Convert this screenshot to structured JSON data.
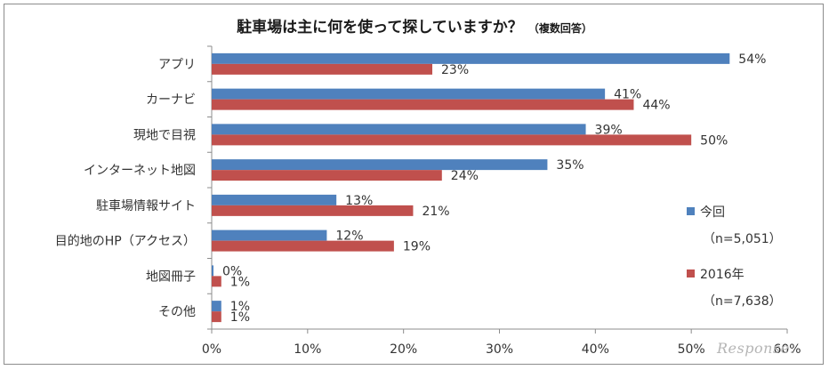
{
  "title": "駐車場は主に何を使って探していますか？",
  "title_note": "（複数回答）",
  "legend": [
    {
      "label": "今回",
      "n": "（n=5,051）",
      "color": "#4f81bd"
    },
    {
      "label": "2016年",
      "n": "（n=7,638）",
      "color": "#c0504d"
    }
  ],
  "watermark": "Response.",
  "chart_data": {
    "type": "bar",
    "orientation": "horizontal",
    "categories": [
      "アプリ",
      "カーナビ",
      "現地で目視",
      "インターネット地図",
      "駐車場情報サイト",
      "目的地のHP（アクセス）",
      "地図冊子",
      "その他"
    ],
    "series": [
      {
        "name": "今回",
        "values": [
          54,
          41,
          39,
          35,
          13,
          12,
          0,
          1
        ],
        "color": "#4f81bd"
      },
      {
        "name": "2016年",
        "values": [
          23,
          44,
          50,
          24,
          21,
          19,
          1,
          1
        ],
        "color": "#c0504d"
      }
    ],
    "xlim": [
      0,
      60
    ],
    "xticks": [
      "0%",
      "10%",
      "20%",
      "30%",
      "40%",
      "50%",
      "60%"
    ],
    "value_suffix": "%",
    "grid": false,
    "legend_position": "right"
  }
}
